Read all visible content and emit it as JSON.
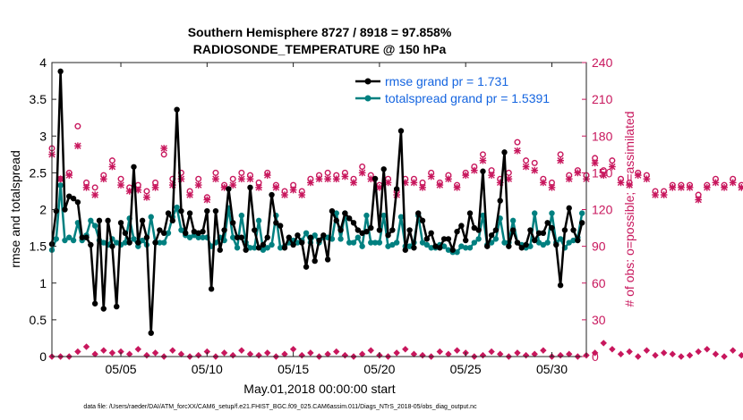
{
  "chart_data": {
    "type": "line",
    "title_line1": "Southern Hemisphere 8727 / 8918 = 97.858%",
    "title_line2": "RADIOSONDE_TEMPERATURE @ 150 hPa",
    "xlabel": "May.01,2018 00:00:00 start",
    "ylabel_left": "rmse and totalspread",
    "ylabel_right": "# of obs: o=possible; ×=assimilated",
    "footnote": "data file: /Users/raeder/DAI/ATM_forcXX/CAM6_setup/f.e21.FHIST_BGC.f09_025.CAM6assim.011/Diags_NTrS_2018-05/obs_diag_output.nc",
    "xlim": [
      1,
      32
    ],
    "ylim_left": [
      0,
      4
    ],
    "ylim_right": [
      0,
      240
    ],
    "x_ticks": [
      5,
      10,
      15,
      20,
      25,
      30
    ],
    "x_tick_labels": [
      "05/05",
      "05/10",
      "05/15",
      "05/20",
      "05/25",
      "05/30"
    ],
    "y_left_ticks": [
      "0",
      "0.5",
      "1",
      "1.5",
      "2",
      "2.5",
      "3",
      "3.5",
      "4"
    ],
    "y_right_ticks": [
      "0",
      "30",
      "60",
      "90",
      "120",
      "150",
      "180",
      "210",
      "240"
    ],
    "legend": [
      {
        "label": "rmse grand pr = 1.731",
        "color": "#000000"
      },
      {
        "label": "totalspread grand pr = 1.5391",
        "color": "#008080"
      }
    ],
    "colors": {
      "rmse": "#000000",
      "spread": "#008080",
      "obs": "#c8175d",
      "legend_text": "#1565e0"
    },
    "series": [
      {
        "name": "rmse",
        "step": 0.25,
        "start": 1.0,
        "values": [
          1.53,
          1.98,
          3.88,
          2.0,
          2.18,
          2.15,
          2.1,
          1.62,
          1.62,
          1.52,
          0.72,
          1.85,
          0.65,
          1.85,
          1.5,
          0.68,
          1.82,
          1.68,
          1.55,
          2.58,
          1.55,
          1.85,
          1.62,
          0.32,
          1.55,
          1.72,
          1.68,
          1.95,
          1.85,
          3.36,
          1.98,
          1.68,
          1.95,
          1.7,
          1.68,
          1.7,
          1.98,
          0.92,
          1.98,
          1.45,
          1.72,
          2.28,
          1.82,
          1.62,
          1.62,
          1.45,
          2.3,
          1.72,
          1.48,
          1.52,
          1.62,
          2.2,
          1.82,
          1.78,
          1.48,
          1.62,
          1.52,
          1.65,
          1.55,
          1.22,
          1.62,
          1.3,
          1.58,
          1.65,
          1.32,
          1.98,
          1.85,
          1.72,
          1.95,
          1.88,
          1.82,
          1.72,
          1.68,
          1.7,
          1.75,
          2.42,
          1.72,
          2.55,
          1.65,
          1.72,
          2.28,
          3.07,
          1.45,
          1.72,
          1.48,
          1.95,
          1.85,
          1.6,
          1.68,
          1.5,
          1.48,
          1.6,
          1.6,
          1.45,
          1.7,
          1.78,
          1.58,
          1.95,
          1.75,
          1.72,
          2.52,
          1.5,
          1.65,
          1.72,
          2.12,
          2.78,
          1.5,
          1.72,
          1.55,
          1.48,
          1.52,
          1.72,
          1.58,
          1.68,
          1.68,
          1.82,
          1.75,
          1.52,
          0.97,
          1.72,
          2.02,
          1.72,
          1.58,
          1.82
        ]
      },
      {
        "name": "totalspread",
        "step": 0.25,
        "start": 1.0,
        "values": [
          1.45,
          1.6,
          2.33,
          1.58,
          1.62,
          1.58,
          1.82,
          1.58,
          1.65,
          1.85,
          1.78,
          1.58,
          1.55,
          1.52,
          1.6,
          1.55,
          1.52,
          1.55,
          1.88,
          1.6,
          1.5,
          1.58,
          1.52,
          1.9,
          1.55,
          1.55,
          1.55,
          1.68,
          1.9,
          2.03,
          1.72,
          1.65,
          1.62,
          1.65,
          1.62,
          1.62,
          1.62,
          1.5,
          1.55,
          1.62,
          1.58,
          2.02,
          1.62,
          1.48,
          1.92,
          1.55,
          1.48,
          1.48,
          1.85,
          1.45,
          1.48,
          1.52,
          1.92,
          1.48,
          1.5,
          1.55,
          1.58,
          1.55,
          1.58,
          1.68,
          1.55,
          1.65,
          1.55,
          1.62,
          1.62,
          1.6,
          1.95,
          1.6,
          1.95,
          1.55,
          1.55,
          1.62,
          1.5,
          1.92,
          1.55,
          1.55,
          1.55,
          1.92,
          1.5,
          1.52,
          1.55,
          1.9,
          1.5,
          1.5,
          1.55,
          1.92,
          1.55,
          1.52,
          1.48,
          1.48,
          1.52,
          1.5,
          1.45,
          1.42,
          1.42,
          1.5,
          1.48,
          1.48,
          1.55,
          1.6,
          1.92,
          1.52,
          1.55,
          1.6,
          1.88,
          1.55,
          1.55,
          1.85,
          1.55,
          1.52,
          1.48,
          1.5,
          1.95,
          1.55,
          1.52,
          1.55,
          1.95,
          1.55,
          1.6,
          1.48,
          1.55,
          1.58,
          1.62,
          1.95
        ]
      }
    ],
    "obs_possible": {
      "name": "possible",
      "step": 0.5,
      "start": 1.0,
      "values": [
        170,
        145,
        150,
        188,
        142,
        138,
        148,
        160,
        145,
        138,
        140,
        135,
        142,
        165,
        145,
        150,
        135,
        145,
        130,
        150,
        140,
        145,
        150,
        148,
        142,
        150,
        140,
        135,
        140,
        135,
        145,
        148,
        150,
        148,
        150,
        145,
        155,
        148,
        140,
        145,
        135,
        145,
        145,
        142,
        150,
        142,
        148,
        140,
        150,
        155,
        165,
        152,
        145,
        150,
        175,
        160,
        158,
        145,
        142,
        165,
        148,
        152,
        148,
        162,
        152,
        160,
        145,
        142,
        150,
        148,
        135,
        135,
        140,
        140,
        140,
        132,
        140,
        145,
        140,
        145,
        140
      ]
    },
    "obs_assimilated": {
      "name": "assimilated",
      "step": 0.5,
      "start": 1.0,
      "values": [
        165,
        145,
        148,
        172,
        138,
        132,
        145,
        155,
        140,
        135,
        136,
        130,
        138,
        170,
        140,
        145,
        132,
        140,
        128,
        145,
        138,
        140,
        145,
        145,
        138,
        148,
        138,
        132,
        136,
        132,
        142,
        145,
        145,
        145,
        147,
        142,
        150,
        145,
        138,
        142,
        132,
        142,
        142,
        138,
        147,
        140,
        145,
        138,
        148,
        152,
        160,
        148,
        142,
        145,
        168,
        155,
        152,
        142,
        138,
        160,
        145,
        150,
        145,
        158,
        148,
        155,
        142,
        140,
        148,
        145,
        132,
        132,
        138,
        138,
        138,
        128,
        138,
        142,
        138,
        142,
        138
      ]
    },
    "obs_low": {
      "name": "low-count",
      "step": 0.5,
      "start": 1.0,
      "values": [
        0,
        0,
        0,
        4,
        8,
        2,
        5,
        3,
        4,
        2,
        6,
        1,
        3,
        0,
        5,
        2,
        0,
        1,
        4,
        0,
        3,
        1,
        5,
        2,
        1,
        3,
        0,
        2,
        6,
        1,
        3,
        0,
        2,
        4,
        1,
        0,
        2,
        5,
        1,
        0,
        3,
        6,
        2,
        1,
        0,
        4,
        2,
        5,
        3,
        0,
        1,
        4,
        2,
        0,
        3,
        1,
        2,
        5,
        0,
        1,
        2,
        0,
        1,
        3,
        11,
        6,
        2,
        4,
        0,
        5,
        1,
        3,
        2,
        0,
        1,
        4,
        6,
        2,
        0,
        5,
        1
      ]
    }
  }
}
